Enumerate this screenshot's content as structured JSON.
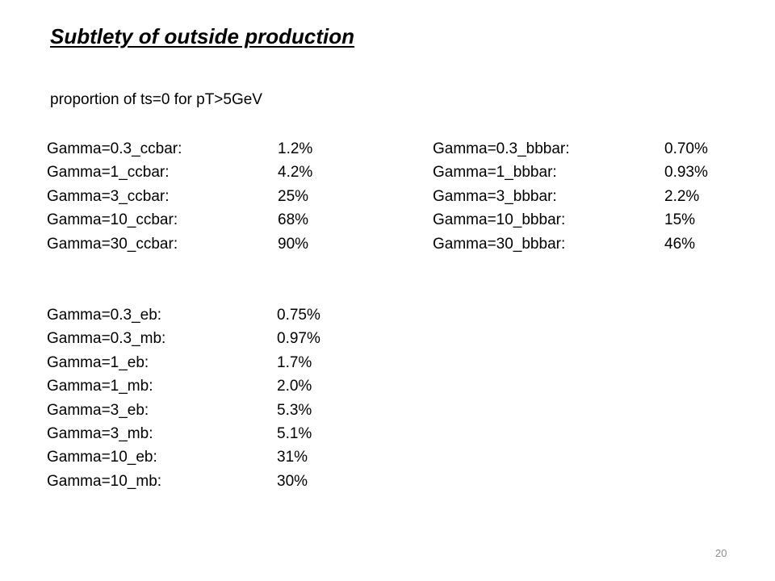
{
  "slide": {
    "title": "Subtlety of outside production",
    "subtitle": "proportion of ts=0 for pT>5GeV",
    "page_number": "20"
  },
  "ccbar": [
    {
      "label": "Gamma=0.3_ccbar:",
      "value": "1.2%"
    },
    {
      "label": "Gamma=1_ccbar:",
      "value": "4.2%"
    },
    {
      "label": "Gamma=3_ccbar:",
      "value": "25%"
    },
    {
      "label": "Gamma=10_ccbar:",
      "value": "68%"
    },
    {
      "label": "Gamma=30_ccbar:",
      "value": "90%"
    }
  ],
  "bbbar": [
    {
      "label": "Gamma=0.3_bbbar:",
      "value": "0.70%"
    },
    {
      "label": "Gamma=1_bbbar:",
      "value": "0.93%"
    },
    {
      "label": "Gamma=3_bbbar:",
      "value": "2.2%"
    },
    {
      "label": "Gamma=10_bbbar:",
      "value": "15%"
    },
    {
      "label": "Gamma=30_bbbar:",
      "value": "46%"
    }
  ],
  "eb_mb": [
    {
      "label": "Gamma=0.3_eb:",
      "value": "0.75%"
    },
    {
      "label": "Gamma=0.3_mb:",
      "value": "0.97%"
    },
    {
      "label": "Gamma=1_eb:",
      "value": "1.7%"
    },
    {
      "label": "Gamma=1_mb:",
      "value": "2.0%"
    },
    {
      "label": "Gamma=3_eb:",
      "value": "5.3%"
    },
    {
      "label": "Gamma=3_mb:",
      "value": "5.1%"
    },
    {
      "label": "Gamma=10_eb:",
      "value": "31%"
    },
    {
      "label": "Gamma=10_mb:",
      "value": "30%"
    }
  ]
}
